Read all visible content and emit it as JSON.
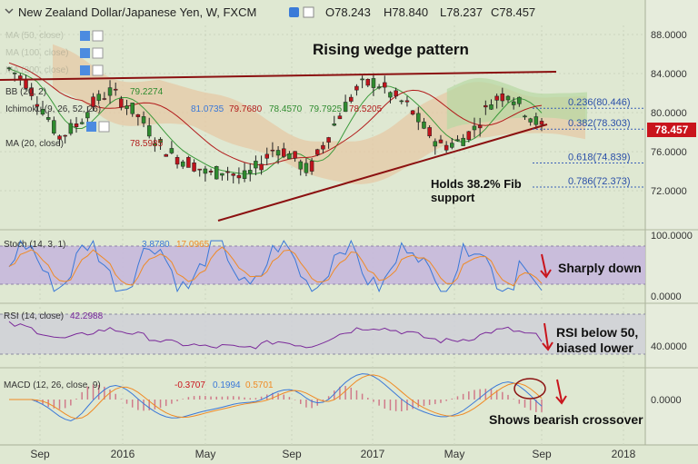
{
  "header": {
    "symbol": "New Zealand Dollar/Japanese Yen, W, FXCM",
    "open": "O78.243",
    "high": "H78.840",
    "low": "L78.237",
    "close": "C78.457"
  },
  "annotations": {
    "title": "Rising wedge pattern",
    "fib_support_line1": "Holds 38.2% Fib",
    "fib_support_line2": "support",
    "stoch_note": "Sharply down",
    "rsi_note_line1": "RSI below 50,",
    "rsi_note_line2": "biased lower",
    "macd_note": "Shows bearish crossover"
  },
  "main_indicators": {
    "ma1": "MA (50, close)",
    "ma2": "MA (100, close)",
    "ma3": "MA (200, close)",
    "bb": "BB (20, 2)",
    "bb_value": "79.2274",
    "ichimoku": "Ichimoku (9, 26, 52, 26)",
    "ichimoku_values": [
      "81.0735",
      "79.7680",
      "78.4570",
      "79.7925",
      "78.5205"
    ],
    "ma20": "MA (20, close)",
    "ma20_value": "78.5985"
  },
  "price_axis": {
    "ticks": [
      "88.0000",
      "84.0000",
      "80.0000",
      "76.0000",
      "72.0000"
    ],
    "current": "78.457"
  },
  "fib_levels": [
    {
      "label": "0.236(80.446)",
      "value": 80.446
    },
    {
      "label": "0.382(78.303)",
      "value": 78.303
    },
    {
      "label": "0.618(74.839)",
      "value": 74.839
    },
    {
      "label": "0.786(72.373)",
      "value": 72.373
    }
  ],
  "stoch": {
    "label": "Stoch (14, 3, 1)",
    "k": "3.8780",
    "d": "17.0965",
    "ticks": [
      "100.0000",
      "0.0000"
    ]
  },
  "rsi": {
    "label": "RSI (14, close)",
    "value": "42.2988",
    "ticks": [
      "40.0000"
    ]
  },
  "macd": {
    "label": "MACD (12, 26, close, 9)",
    "values": [
      "-0.3707",
      "0.1994",
      "0.5701"
    ],
    "ticks": [
      "0.0000"
    ]
  },
  "x_axis": {
    "labels": [
      "Sep",
      "2016",
      "May",
      "Sep",
      "2017",
      "May",
      "Sep",
      "2018"
    ]
  },
  "colors": {
    "background": "#dfe8d2",
    "bull": "#2e8b2e",
    "bear": "#c0141c",
    "wedge": "#8b1010",
    "cloud": "#e6c9a6",
    "stoch_band": "#c6b8dc",
    "rsi_band": "#d0d0d8",
    "rsi_line": "#7b2a9a",
    "macd_line": "#3a78d8",
    "signal_line": "#f08a24"
  },
  "chart_data": {
    "type": "candlestick",
    "title": "Rising wedge pattern",
    "x": [
      "Sep",
      "2016",
      "May",
      "Sep",
      "2017",
      "May",
      "Sep",
      "2018"
    ],
    "ylim": [
      69,
      91
    ],
    "price_series_close": [
      84.5,
      83.2,
      80.5,
      77.5,
      78.6,
      80.8,
      82.2,
      81.0,
      79.2,
      76.8,
      75.5,
      74.8,
      73.6,
      74.2,
      73.1,
      74.5,
      76.5,
      75.6,
      73.9,
      77.1,
      80.2,
      82.6,
      83.2,
      81.8,
      80.6,
      78.3,
      76.6,
      77.0,
      78.4,
      81.2,
      82.1,
      80.2,
      78.5
    ],
    "wedge_upper": [
      [
        0,
        84.2
      ],
      [
        32,
        84.0
      ]
    ],
    "wedge_lower": [
      [
        12,
        70.6
      ],
      [
        32,
        78.2
      ]
    ],
    "fibonacci": [
      {
        "level": 0.236,
        "value": 80.446
      },
      {
        "level": 0.382,
        "value": 78.303
      },
      {
        "level": 0.618,
        "value": 74.839
      },
      {
        "level": 0.786,
        "value": 72.373
      }
    ],
    "last_price": 78.457,
    "stoch": {
      "k": 3.878,
      "d": 17.0965,
      "range": [
        0,
        100
      ]
    },
    "rsi": {
      "value": 42.2988
    },
    "macd": {
      "macd": -0.3707,
      "signal": 0.1994,
      "hist": 0.5701
    }
  }
}
